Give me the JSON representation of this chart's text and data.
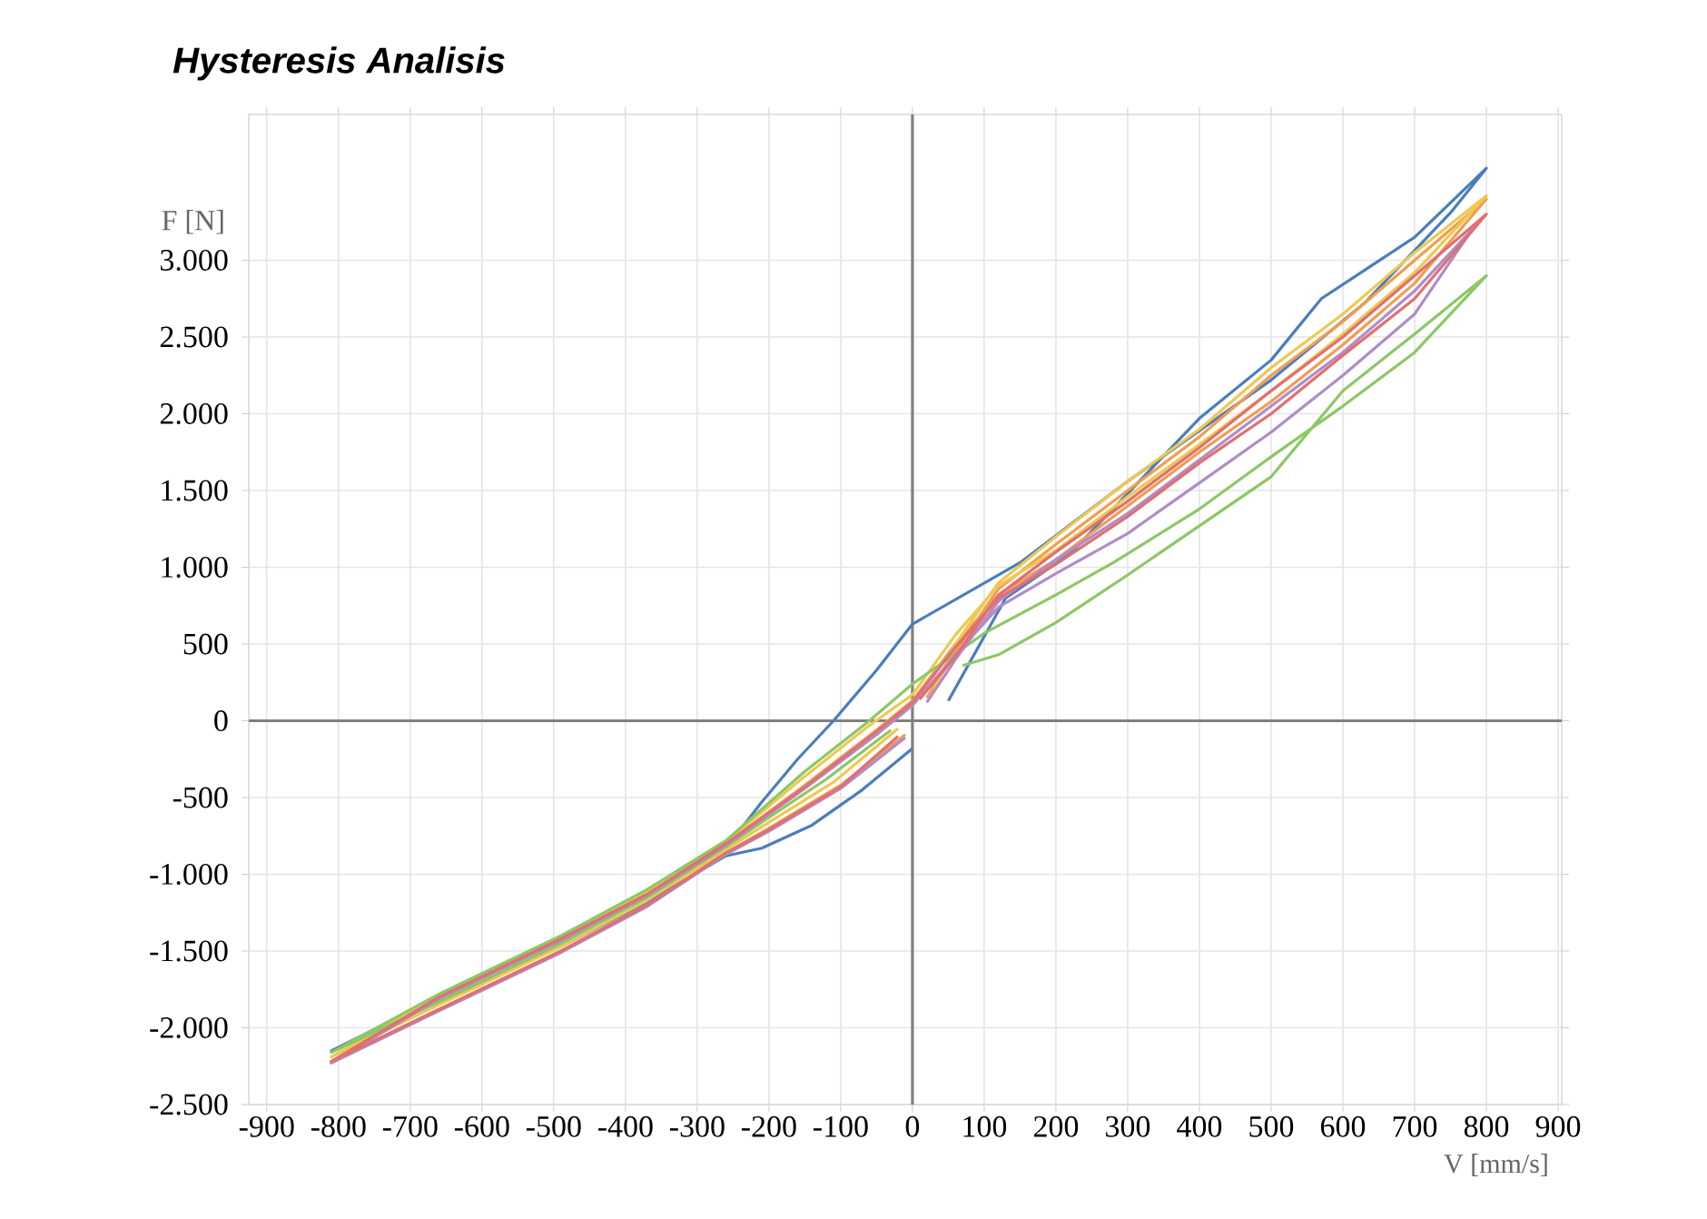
{
  "chart_data": {
    "type": "line",
    "title": "Hysteresis Analisis",
    "xlabel": "V [mm/s]",
    "ylabel": "F [N]",
    "xlim": [
      -925,
      905
    ],
    "ylim": [
      -2500,
      3950
    ],
    "xticks": [
      -900,
      -800,
      -700,
      -600,
      -500,
      -400,
      -300,
      -200,
      -100,
      0,
      100,
      200,
      300,
      400,
      500,
      600,
      700,
      800,
      900
    ],
    "yticks": [
      {
        "value": -2500,
        "label": "-2.500"
      },
      {
        "value": -2000,
        "label": "-2.000"
      },
      {
        "value": -1500,
        "label": "-1.500"
      },
      {
        "value": -1000,
        "label": "-1.000"
      },
      {
        "value": -500,
        "label": "-500"
      },
      {
        "value": 0,
        "label": "0"
      },
      {
        "value": 500,
        "label": "500"
      },
      {
        "value": 1000,
        "label": "1.000"
      },
      {
        "value": 1500,
        "label": "1.500"
      },
      {
        "value": 2000,
        "label": "2.000"
      },
      {
        "value": 2500,
        "label": "2.500"
      },
      {
        "value": 3000,
        "label": "3.000"
      }
    ],
    "grid": true,
    "marker": "none",
    "line_style": "solid",
    "series": [
      {
        "color": "#4a7ebb",
        "x": [
          0,
          -70,
          -140,
          -210,
          -260,
          -370,
          -490,
          -660,
          -810,
          -660,
          -490,
          -370,
          -260,
          -210,
          -160,
          -110,
          -50,
          0,
          150,
          300,
          500,
          630,
          750,
          800,
          700,
          570,
          500,
          400,
          220,
          130,
          50
        ],
        "values": [
          -180,
          -450,
          -680,
          -830,
          -880,
          -1180,
          -1470,
          -1830,
          -2150,
          -1800,
          -1430,
          -1150,
          -830,
          -530,
          -250,
          0,
          330,
          630,
          1030,
          1560,
          2220,
          2720,
          3310,
          3600,
          3150,
          2750,
          2350,
          1970,
          1090,
          800,
          130
        ]
      },
      {
        "color": "#f39c50",
        "x": [
          -10,
          -100,
          -200,
          -260,
          -370,
          -490,
          -660,
          -810,
          -660,
          -490,
          -370,
          -260,
          -150,
          -50,
          0,
          60,
          120,
          200,
          300,
          400,
          500,
          600,
          700,
          800,
          750,
          600,
          500,
          400,
          300,
          200,
          120,
          60,
          20
        ],
        "values": [
          -90,
          -420,
          -700,
          -860,
          -1200,
          -1500,
          -1880,
          -2220,
          -1800,
          -1420,
          -1130,
          -800,
          -420,
          -60,
          130,
          500,
          820,
          1050,
          1400,
          1750,
          2080,
          2450,
          2850,
          3400,
          3200,
          2600,
          2250,
          1850,
          1500,
          1150,
          860,
          450,
          150
        ]
      },
      {
        "color": "#f0c850",
        "x": [
          -20,
          -110,
          -210,
          -260,
          -370,
          -490,
          -660,
          -810,
          -660,
          -490,
          -370,
          -260,
          -160,
          -60,
          0,
          60,
          120,
          200,
          300,
          400,
          500,
          600,
          700,
          800,
          700,
          600,
          500,
          400,
          300,
          200,
          120,
          60,
          30
        ],
        "values": [
          -50,
          -400,
          -690,
          -840,
          -1170,
          -1470,
          -1850,
          -2190,
          -1790,
          -1410,
          -1120,
          -790,
          -400,
          -30,
          170,
          560,
          880,
          1110,
          1460,
          1800,
          2150,
          2520,
          2920,
          3420,
          3050,
          2650,
          2300,
          1900,
          1560,
          1200,
          900,
          500,
          200
        ]
      },
      {
        "color": "#8cc864",
        "x": [
          -30,
          -120,
          -210,
          -260,
          -370,
          -490,
          -660,
          -810,
          -660,
          -490,
          -370,
          -260,
          -150,
          -60,
          0,
          100,
          200,
          280,
          400,
          500,
          600,
          700,
          800,
          700,
          600,
          500,
          400,
          300,
          200,
          120,
          70
        ],
        "values": [
          -60,
          -380,
          -660,
          -820,
          -1150,
          -1450,
          -1830,
          -2160,
          -1780,
          -1400,
          -1100,
          -780,
          -330,
          0,
          240,
          570,
          820,
          1030,
          1380,
          1720,
          2050,
          2400,
          2900,
          2520,
          2150,
          1590,
          1270,
          950,
          640,
          430,
          360
        ]
      },
      {
        "color": "#b08cc8",
        "x": [
          -10,
          -100,
          -200,
          -260,
          -370,
          -490,
          -660,
          -810,
          -660,
          -490,
          -370,
          -260,
          -150,
          -50,
          0,
          60,
          120,
          200,
          300,
          400,
          500,
          600,
          700,
          780,
          700,
          600,
          500,
          400,
          300,
          200,
          120,
          60,
          20
        ],
        "values": [
          -110,
          -440,
          -720,
          -870,
          -1210,
          -1510,
          -1890,
          -2230,
          -1810,
          -1430,
          -1140,
          -810,
          -440,
          -90,
          100,
          430,
          740,
          960,
          1220,
          1550,
          1880,
          2250,
          2650,
          3200,
          2800,
          2400,
          2050,
          1700,
          1350,
          1050,
          780,
          400,
          120
        ]
      },
      {
        "color": "#e07070",
        "x": [
          -20,
          -100,
          -200,
          -260,
          -370,
          -490,
          -660,
          -810,
          -660,
          -490,
          -370,
          -260,
          -150,
          -50,
          0,
          60,
          120,
          200,
          300,
          400,
          500,
          600,
          700,
          800,
          750,
          600,
          500,
          400,
          300,
          200,
          120,
          60,
          10
        ],
        "values": [
          -100,
          -430,
          -710,
          -860,
          -1200,
          -1500,
          -1880,
          -2220,
          -1800,
          -1420,
          -1130,
          -800,
          -430,
          -70,
          120,
          480,
          800,
          1020,
          1330,
          1680,
          2000,
          2380,
          2750,
          3300,
          3100,
          2500,
          2150,
          1780,
          1430,
          1100,
          820,
          420,
          140
        ]
      }
    ]
  }
}
